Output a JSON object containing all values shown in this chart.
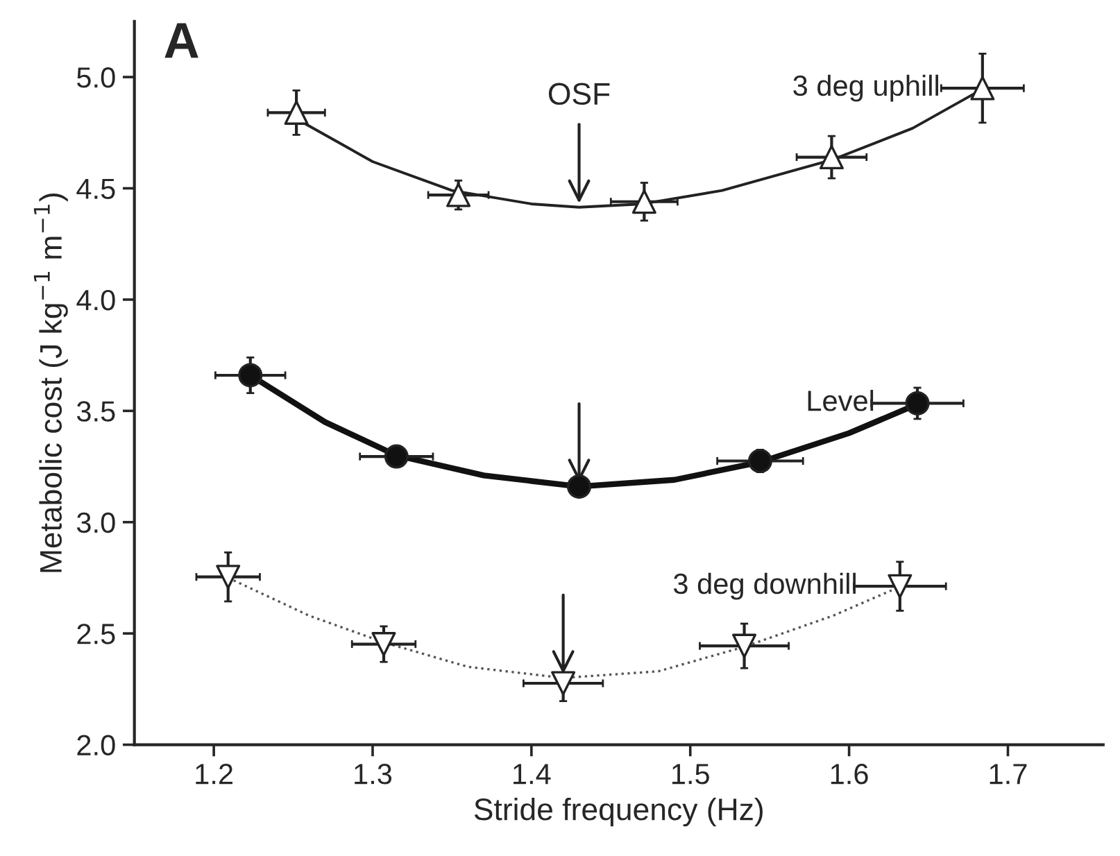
{
  "chart_data": {
    "type": "scatter",
    "xlabel": "Stride frequency (Hz)",
    "ylabel": "Metabolic cost (J kg$^{−1}$ m$^{−1}$)",
    "xlim": [
      1.15,
      1.76
    ],
    "ylim": [
      2.0,
      5.25
    ],
    "xticks": [
      1.2,
      1.3,
      1.4,
      1.5,
      1.6,
      1.7
    ],
    "yticks": [
      {
        "value": 2.0,
        "label": "2.0"
      },
      {
        "value": 2.5,
        "label": "2.5"
      },
      {
        "value": 3.0,
        "label": "3.0"
      },
      {
        "value": 3.5,
        "label": "3.5"
      },
      {
        "value": 4.0,
        "label": "4.0"
      },
      {
        "value": 4.5,
        "label": "4.5"
      },
      {
        "value": 5.0,
        "label": "5.0"
      }
    ],
    "grid": false,
    "legend": false,
    "series": [
      {
        "type": "line",
        "color": "#222222",
        "line_style": "solid",
        "x": [
          1.25,
          1.3,
          1.35,
          1.4,
          1.43,
          1.47,
          1.52,
          1.59,
          1.64,
          1.685
        ],
        "values": [
          4.82,
          4.62,
          4.49,
          4.43,
          4.415,
          4.43,
          4.49,
          4.63,
          4.77,
          4.95
        ]
      },
      {
        "type": "line",
        "color": "#111111",
        "line_style": "solid",
        "x": [
          1.223,
          1.27,
          1.315,
          1.37,
          1.43,
          1.49,
          1.544,
          1.6,
          1.643
        ],
        "values": [
          3.66,
          3.45,
          3.3,
          3.21,
          3.16,
          3.19,
          3.27,
          3.4,
          3.53
        ]
      },
      {
        "type": "line",
        "color": "#555555",
        "line_style": "dotted",
        "x": [
          1.209,
          1.26,
          1.307,
          1.36,
          1.42,
          1.48,
          1.534,
          1.59,
          1.632
        ],
        "values": [
          2.75,
          2.58,
          2.46,
          2.35,
          2.3,
          2.33,
          2.44,
          2.58,
          2.71
        ]
      },
      {
        "name": "3 deg uphill",
        "type": "scatter",
        "marker": "triangle",
        "color": "#ffffff",
        "x": [
          1.252,
          1.354,
          1.471,
          1.589,
          1.684
        ],
        "values": [
          4.84,
          4.47,
          4.44,
          4.64,
          4.95
        ],
        "errors": [
          0.1,
          0.065,
          0.085,
          0.095,
          0.155
        ],
        "xerrors": [
          0.018,
          0.019,
          0.021,
          0.022,
          0.026
        ]
      },
      {
        "name": "Level",
        "type": "scatter",
        "marker": "circle",
        "color": "#111111",
        "x": [
          1.223,
          1.315,
          1.43,
          1.544,
          1.643
        ],
        "values": [
          3.66,
          3.295,
          3.16,
          3.275,
          3.534
        ],
        "errors": [
          0.08,
          0.02,
          null,
          0.05,
          0.07
        ],
        "xerrors": [
          0.022,
          0.023,
          null,
          0.027,
          0.029
        ]
      },
      {
        "name": "3 deg downhill",
        "type": "scatter",
        "marker": "triangle_down",
        "color": "#ffffff",
        "x": [
          1.209,
          1.307,
          1.42,
          1.534,
          1.632
        ],
        "values": [
          2.754,
          2.452,
          2.276,
          2.444,
          2.712
        ],
        "errors": [
          0.11,
          0.08,
          0.08,
          0.1,
          0.11
        ],
        "xerrors": [
          0.02,
          0.02,
          0.025,
          0.028,
          0.029
        ]
      }
    ],
    "annotations": [
      "A",
      {
        "text": "OSF",
        "x": 1.43,
        "y": 4.415
      }
    ]
  }
}
